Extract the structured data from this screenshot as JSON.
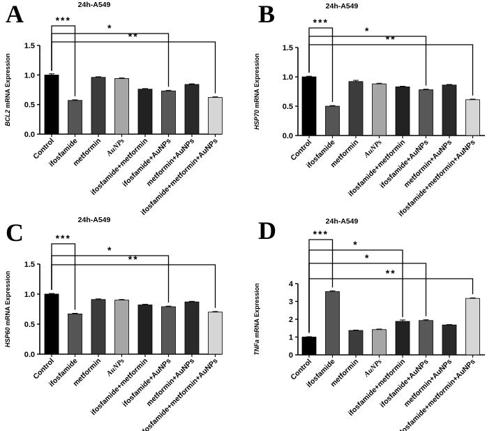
{
  "colors": {
    "bars": [
      "#000000",
      "#555555",
      "#3c3c3c",
      "#a6a6a6",
      "#222222",
      "#585858",
      "#2a2a2a",
      "#d6d6d6"
    ]
  },
  "chart_data": [
    {
      "panel": "A",
      "type": "bar",
      "title": "24h-A549",
      "ylabel": "BCL2 mRNA Expression",
      "ylabel_italic_part": "BCL2",
      "ylabel_rest": " mRNA Expression",
      "xlabel": "",
      "ylim": [
        0,
        1.5
      ],
      "yticks": [
        "0.0",
        "0.5",
        "1.0",
        "1.5"
      ],
      "categories": [
        "Control",
        "ifosfamide",
        "metformin",
        "AuNPs",
        "ifosfamide+metformin",
        "ifosfamide+AuNPs",
        "metformin+AuNPs",
        "ifosfamide+metformin+AuNPs"
      ],
      "values": [
        1.0,
        0.57,
        0.96,
        0.94,
        0.76,
        0.73,
        0.84,
        0.62
      ],
      "errors": [
        0.02,
        0.01,
        0.01,
        0.01,
        0.01,
        0.01,
        0.01,
        0.01
      ],
      "significance": [
        {
          "from": 0,
          "to": 1,
          "label": "***"
        },
        {
          "from": 0,
          "to": 5,
          "label": "*"
        },
        {
          "from": 0,
          "to": 7,
          "label": "**"
        }
      ]
    },
    {
      "panel": "B",
      "type": "bar",
      "title": "24h-A549",
      "ylabel": "HSP70 mRNA Expression",
      "ylabel_italic_part": "HSP70",
      "ylabel_rest": " mRNA Expression",
      "xlabel": "",
      "ylim": [
        0,
        1.5
      ],
      "yticks": [
        "0.0",
        "0.5",
        "1.0",
        "1.5"
      ],
      "categories": [
        "Control",
        "ifosfamide",
        "metformin",
        "AuNPs",
        "ifosfamide+metformin",
        "ifosfamide+AuNPs",
        "metformin+AuNPs",
        "ifosfamide+metformin+AuNPs"
      ],
      "values": [
        1.0,
        0.5,
        0.92,
        0.88,
        0.83,
        0.78,
        0.86,
        0.61
      ],
      "errors": [
        0.01,
        0.01,
        0.02,
        0.01,
        0.01,
        0.01,
        0.01,
        0.01
      ],
      "significance": [
        {
          "from": 0,
          "to": 1,
          "label": "***"
        },
        {
          "from": 0,
          "to": 5,
          "label": "*"
        },
        {
          "from": 0,
          "to": 7,
          "label": "**"
        }
      ]
    },
    {
      "panel": "C",
      "type": "bar",
      "title": "24h-A549",
      "ylabel": "HSP60 mRNA Expression",
      "ylabel_italic_part": "HSP60",
      "ylabel_rest": " mRNA Expression",
      "xlabel": "",
      "ylim": [
        0,
        1.5
      ],
      "yticks": [
        "0.0",
        "0.5",
        "1.0",
        "1.5"
      ],
      "categories": [
        "Control",
        "ifosfamide",
        "metformin",
        "AuNPs",
        "ifosfamide+metformin",
        "ifosfamide+AuNPs",
        "metformin+AuNPs",
        "ifosfamide+metformin+AuNPs"
      ],
      "values": [
        1.0,
        0.67,
        0.91,
        0.9,
        0.82,
        0.79,
        0.87,
        0.7
      ],
      "errors": [
        0.01,
        0.01,
        0.01,
        0.01,
        0.01,
        0.01,
        0.01,
        0.01
      ],
      "significance": [
        {
          "from": 0,
          "to": 1,
          "label": "***"
        },
        {
          "from": 0,
          "to": 5,
          "label": "*"
        },
        {
          "from": 0,
          "to": 7,
          "label": "**"
        }
      ]
    },
    {
      "panel": "D",
      "type": "bar",
      "title": "24h-A549",
      "ylabel": "TNFa mRNA Expression",
      "ylabel_italic_part": "TNFa",
      "ylabel_rest": " mRNA Expression",
      "xlabel": "",
      "ylim": [
        0,
        4
      ],
      "yticks": [
        "0",
        "1",
        "2",
        "3",
        "4"
      ],
      "categories": [
        "Control",
        "ifosfamide",
        "metformin",
        "AuNPs",
        "ifosfamide+metformin",
        "ifosfamide+AuNPs",
        "metformin+AuNPs",
        "ifosfamide+metformin+AuNPs"
      ],
      "values": [
        1.0,
        3.55,
        1.37,
        1.42,
        1.88,
        1.93,
        1.68,
        3.17
      ],
      "errors": [
        0.02,
        0.05,
        0.02,
        0.03,
        0.08,
        0.04,
        0.02,
        0.03
      ],
      "significance": [
        {
          "from": 0,
          "to": 1,
          "label": "***"
        },
        {
          "from": 0,
          "to": 4,
          "label": "*"
        },
        {
          "from": 0,
          "to": 5,
          "label": "*"
        },
        {
          "from": 0,
          "to": 7,
          "label": "**"
        }
      ]
    }
  ]
}
